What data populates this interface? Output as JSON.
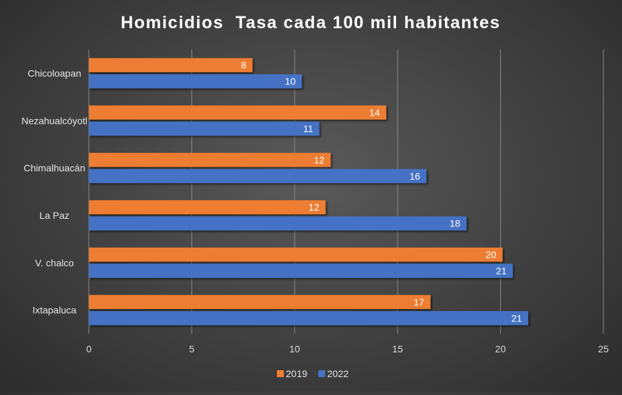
{
  "chart_data": {
    "type": "bar",
    "orientation": "horizontal",
    "title": "Homicidios  Tasa cada 100 mil habitantes",
    "categories": [
      "Chicoloapan",
      "Nezahualcóyotl",
      "Chimalhuacán",
      "La Paz",
      "V. chalco",
      "Ixtapaluca"
    ],
    "series": [
      {
        "name": "2019",
        "color": "#ED7D31",
        "values": [
          8,
          14,
          12,
          12,
          20,
          17
        ],
        "plot_values": [
          7.95,
          14.45,
          11.75,
          11.5,
          20.1,
          16.6
        ],
        "labels": [
          "8",
          "14",
          "12",
          "12",
          "20",
          "17"
        ]
      },
      {
        "name": "2022",
        "color": "#4472C4",
        "values": [
          10,
          11,
          16,
          18,
          21,
          21
        ],
        "plot_values": [
          10.35,
          11.2,
          16.4,
          18.35,
          20.6,
          21.35
        ],
        "labels": [
          "10",
          "11",
          "16",
          "18",
          "21",
          "21"
        ]
      }
    ],
    "xlim": [
      0,
      25
    ],
    "xticks": [
      0,
      5,
      10,
      15,
      20,
      25
    ],
    "xtick_labels": [
      "0",
      "5",
      "10",
      "15",
      "20",
      "25"
    ],
    "grid": true,
    "legend_position": "bottom"
  }
}
